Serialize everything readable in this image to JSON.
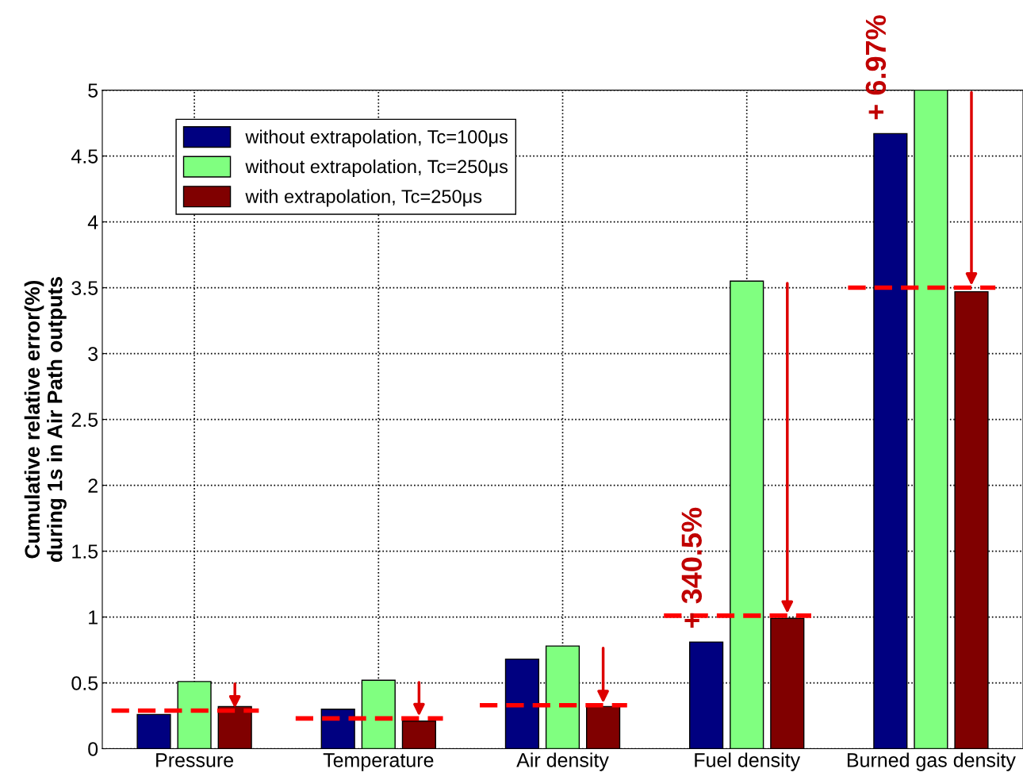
{
  "chart_data": {
    "type": "bar",
    "ylabel": "Cumulative relative error(%)\nduring 1s in Air Path outputs",
    "categories": [
      "Pressure",
      "Temperature",
      "Air density",
      "Fuel density",
      "Burned gas density"
    ],
    "series": [
      {
        "name": "without extrapolation, Tc=100μs",
        "color": "#000080",
        "values": [
          0.26,
          0.3,
          0.68,
          0.81,
          4.67
        ]
      },
      {
        "name": "without extrapolation, Tc=250μs",
        "color": "#80ff80",
        "values": [
          0.51,
          0.52,
          0.78,
          3.55,
          5.0
        ]
      },
      {
        "name": "with extrapolation, Tc=250μs",
        "color": "#800000",
        "values": [
          0.32,
          0.21,
          0.32,
          0.99,
          3.47
        ]
      }
    ],
    "ylim": [
      0,
      5
    ],
    "yticks": [
      0,
      0.5,
      1,
      1.5,
      2,
      2.5,
      3,
      3.5,
      4,
      4.5,
      5
    ],
    "grid": true,
    "legend": "top left",
    "ref_lines": [
      {
        "axis": "y",
        "value": 0.29,
        "color": "#ff0000",
        "line_style": "dashed"
      },
      {
        "axis": "y",
        "value": 0.23,
        "color": "#ff0000",
        "line_style": "dashed"
      },
      {
        "axis": "y",
        "value": 0.33,
        "color": "#ff0000",
        "line_style": "dashed"
      },
      {
        "axis": "y",
        "value": 1.01,
        "color": "#ff0000",
        "line_style": "dashed"
      },
      {
        "axis": "y",
        "value": 3.5,
        "color": "#ff0000",
        "line_style": "dashed"
      }
    ],
    "annotations": [
      "+ 340.5%",
      "+ 6.97%"
    ]
  }
}
